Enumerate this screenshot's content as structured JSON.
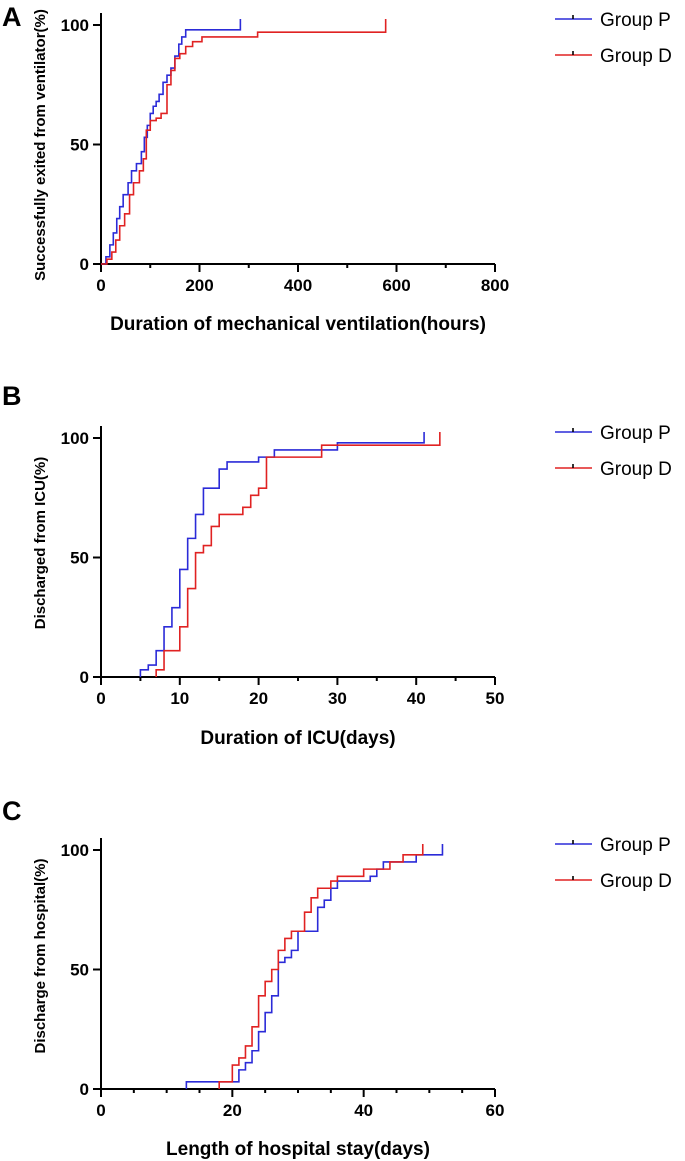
{
  "chart_data": [
    {
      "type": "line",
      "step": true,
      "panel": "A",
      "xlabel": "Duration of mechanical ventilation(hours)",
      "ylabel": "Successfully exited from ventilator(%)",
      "xlim": [
        0,
        800
      ],
      "ylim": [
        0,
        100
      ],
      "xticks": [
        0,
        200,
        400,
        600,
        800
      ],
      "yticks": [
        0,
        50,
        100
      ],
      "legend": "top-right",
      "series": [
        {
          "name": "Group  P",
          "color": "#2b2bd8",
          "x": [
            0,
            10,
            18,
            25,
            32,
            38,
            45,
            55,
            62,
            72,
            82,
            88,
            94,
            100,
            106,
            112,
            118,
            126,
            134,
            142,
            150,
            158,
            164,
            172,
            283
          ],
          "y": [
            0,
            3,
            8,
            13,
            19,
            24,
            29,
            34,
            39,
            42,
            47,
            53,
            58,
            63,
            66,
            68,
            71,
            76,
            79,
            82,
            87,
            92,
            95,
            98,
            100
          ]
        },
        {
          "name": "Group  D",
          "color": "#e02222",
          "x": [
            0,
            12,
            22,
            30,
            38,
            48,
            58,
            66,
            78,
            86,
            92,
            100,
            112,
            122,
            134,
            142,
            150,
            160,
            172,
            186,
            205,
            318,
            578
          ],
          "y": [
            0,
            2,
            5,
            10,
            16,
            21,
            29,
            34,
            39,
            44,
            56,
            60,
            61,
            63,
            75,
            81,
            86,
            88,
            91,
            93,
            95,
            97,
            100
          ]
        }
      ]
    },
    {
      "type": "line",
      "step": true,
      "panel": "B",
      "xlabel": "Duration of ICU(days)",
      "ylabel": "Discharged from ICU(%)",
      "xlim": [
        0,
        50
      ],
      "ylim": [
        0,
        100
      ],
      "xticks": [
        0,
        10,
        20,
        30,
        40,
        50
      ],
      "yticks": [
        0,
        50,
        100
      ],
      "legend": "top-right",
      "series": [
        {
          "name": "Group  P",
          "color": "#2b2bd8",
          "x": [
            5,
            6,
            7,
            8,
            9,
            10,
            11,
            12,
            13,
            15,
            16,
            20,
            22,
            30,
            41
          ],
          "y": [
            3,
            5,
            11,
            21,
            29,
            45,
            58,
            68,
            79,
            87,
            90,
            92,
            95,
            98,
            100
          ]
        },
        {
          "name": "Group  D",
          "color": "#e02222",
          "x": [
            7,
            8,
            10,
            11,
            12,
            13,
            14,
            15,
            18,
            19,
            20,
            21,
            28,
            43
          ],
          "y": [
            3,
            11,
            21,
            37,
            52,
            55,
            63,
            68,
            71,
            76,
            79,
            92,
            97,
            100
          ]
        }
      ]
    },
    {
      "type": "line",
      "step": true,
      "panel": "C",
      "xlabel": "Length of hospital stay(days)",
      "ylabel": "Discharge from hospital(%)",
      "xlim": [
        0,
        60
      ],
      "ylim": [
        0,
        100
      ],
      "xticks": [
        0,
        20,
        40,
        60
      ],
      "yticks": [
        0,
        50,
        100
      ],
      "legend": "top-right",
      "series": [
        {
          "name": "Group  P",
          "color": "#2b2bd8",
          "x": [
            13,
            21,
            22,
            23,
            24,
            25,
            26,
            27,
            28,
            29,
            30,
            33,
            34,
            35,
            36,
            41,
            42,
            43,
            48,
            52
          ],
          "y": [
            3,
            8,
            11,
            16,
            24,
            32,
            39,
            53,
            55,
            58,
            66,
            76,
            79,
            84,
            87,
            89,
            92,
            95,
            98,
            100
          ]
        },
        {
          "name": "Group  D",
          "color": "#e02222",
          "x": [
            18,
            20,
            21,
            22,
            23,
            24,
            25,
            26,
            27,
            28,
            29,
            31,
            32,
            33,
            35,
            36,
            40,
            44,
            46,
            49
          ],
          "y": [
            3,
            10,
            13,
            18,
            26,
            39,
            45,
            50,
            58,
            63,
            66,
            74,
            80,
            84,
            87,
            89,
            92,
            95,
            98,
            100
          ]
        }
      ]
    }
  ]
}
